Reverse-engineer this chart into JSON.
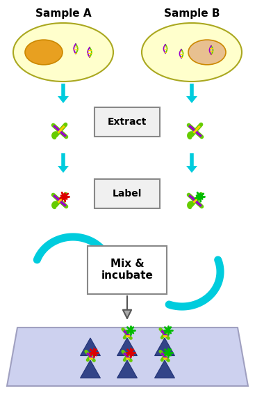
{
  "title_A": "Sample A",
  "title_B": "Sample B",
  "label_extract": "Extract",
  "label_label": "Label",
  "label_mix": "Mix &\nincubate",
  "bg_color": "#ffffff",
  "cell_color_A": "#ffffcc",
  "cell_color_B": "#ffffcc",
  "nucleus_color_A": "#e8a020",
  "nucleus_color_B": "#e8c090",
  "arrow_color": "#00ccdd",
  "box_facecolor": "#f0f0f0",
  "box_edge": "#888888",
  "plate_color": "#c8ccee",
  "plate_edge": "#9999bb",
  "triangle_color": "#334488",
  "label_red": "#dd0000",
  "label_green": "#00bb00",
  "green": "#66cc00",
  "purple": "#9900cc",
  "yellow": "#ffcc00",
  "fig_width": 3.67,
  "fig_height": 5.64,
  "dpi": 100
}
